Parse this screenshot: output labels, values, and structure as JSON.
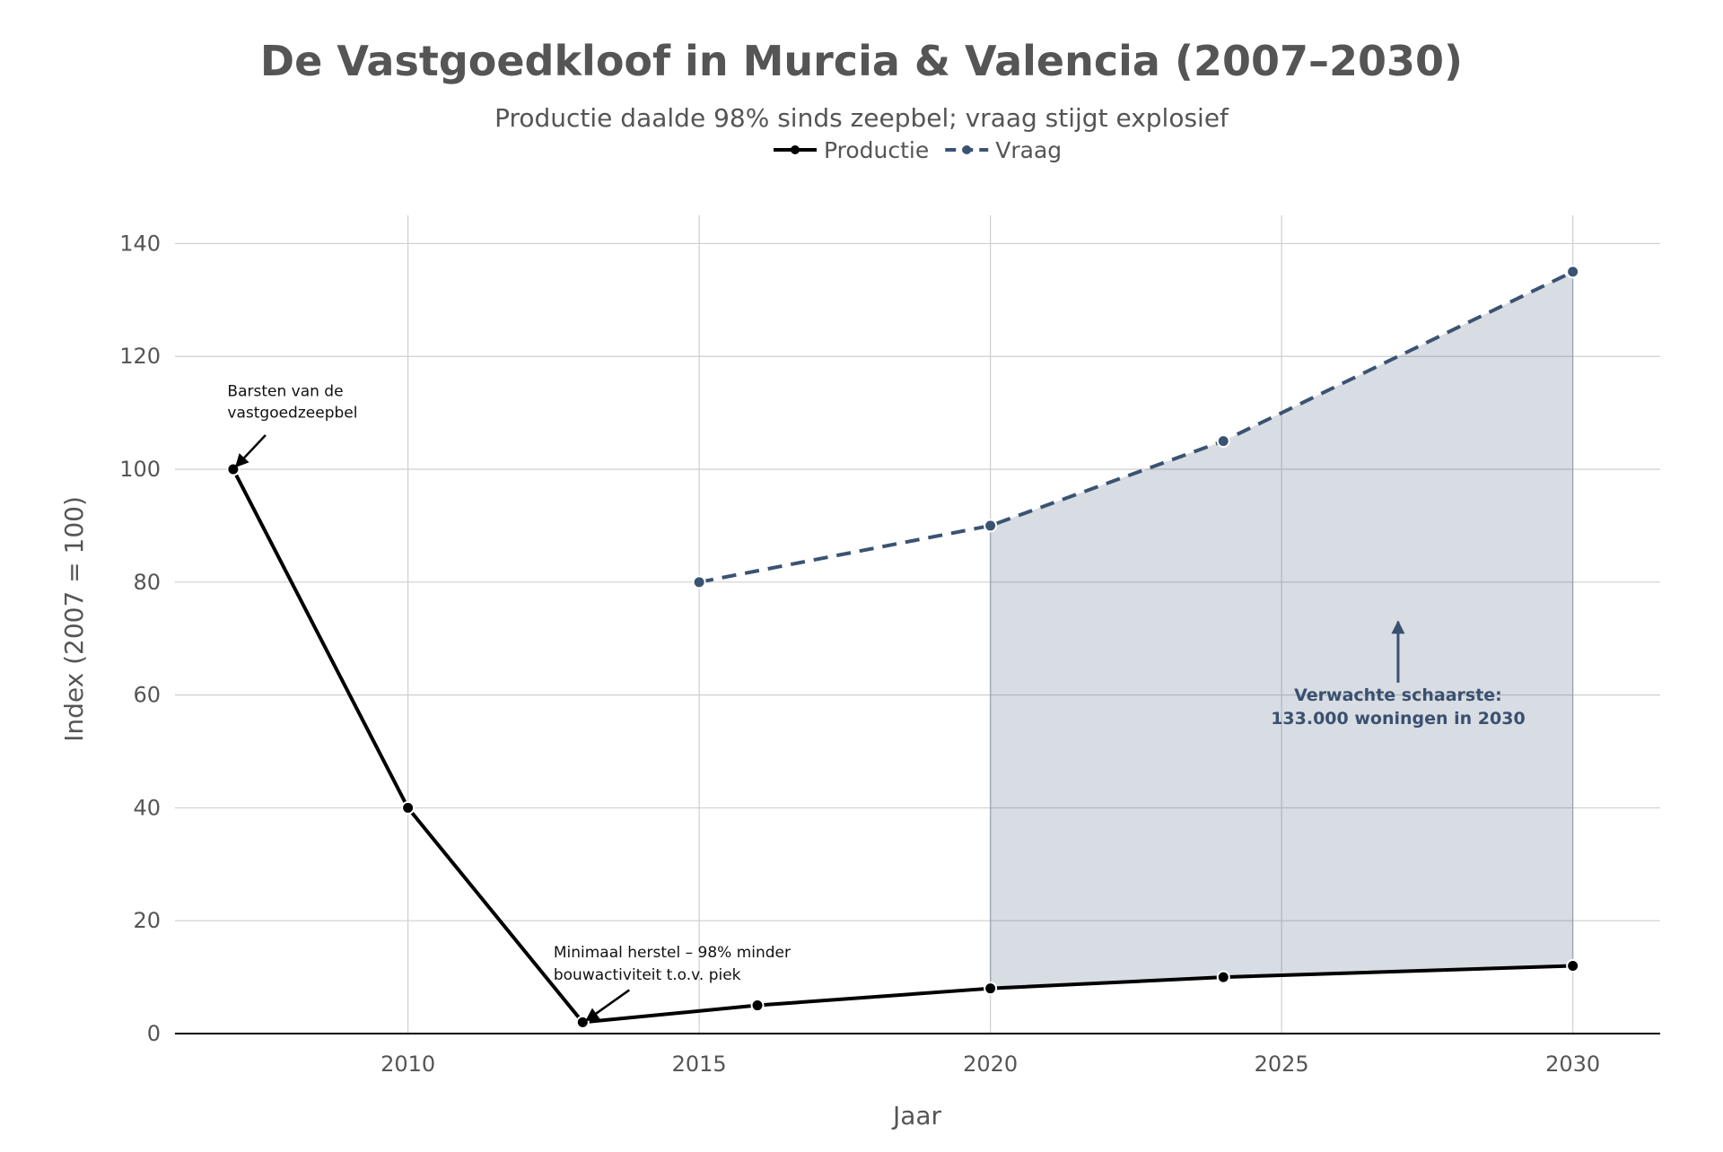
{
  "chart_data": {
    "type": "line",
    "title": "De Vastgoedkloof in Murcia & Valencia (2007–2030)",
    "subtitle": "Productie daalde 98% sinds zeepbel; vraag stijgt explosief",
    "xlabel": "Jaar",
    "ylabel": "Index (2007 = 100)",
    "xlim": [
      2006,
      2031.5
    ],
    "ylim": [
      0,
      145
    ],
    "xticks": [
      2010,
      2015,
      2020,
      2025,
      2030
    ],
    "yticks": [
      0,
      20,
      40,
      60,
      80,
      100,
      120,
      140
    ],
    "grid": true,
    "legend_position": "top",
    "series": [
      {
        "name": "Productie",
        "color": "#000000",
        "dash": "solid",
        "x": [
          2007,
          2010,
          2013,
          2016,
          2020,
          2024,
          2030
        ],
        "y": [
          100,
          40,
          2,
          5,
          8,
          10,
          12
        ]
      },
      {
        "name": "Vraag",
        "color": "#3b5372",
        "dash": "dashed",
        "x": [
          2015,
          2020,
          2024,
          2030
        ],
        "y": [
          80,
          90,
          105,
          135
        ]
      }
    ],
    "shaded_gap": {
      "from_x": 2020,
      "to_x": 2030,
      "color": "#3b5372"
    },
    "annotations": [
      {
        "lines": [
          "Barsten van de",
          "vastgoedzeepbel"
        ],
        "x": 2007,
        "y": 100,
        "text_x": 2006.9,
        "text_y": 113
      },
      {
        "lines": [
          "Minimaal herstel – 98% minder",
          "bouwactiviteit t.o.v. piek"
        ],
        "x": 2013,
        "y": 2,
        "text_x": 2012.5,
        "text_y": 13.5
      },
      {
        "lines": [
          "Verwachte schaarste:",
          "133.000 woningen in 2030"
        ],
        "x": 2027,
        "y": 73,
        "text_x": 2027,
        "text_y": 59
      }
    ]
  }
}
